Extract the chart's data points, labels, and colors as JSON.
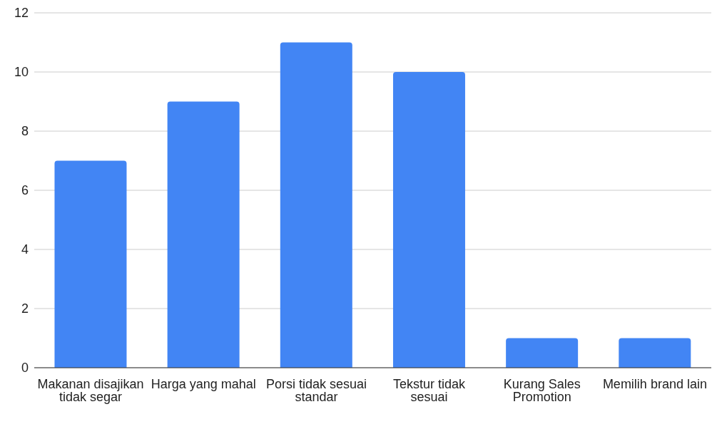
{
  "chart_data": {
    "type": "bar",
    "categories": [
      "Makanan disajikan tidak segar",
      "Harga yang mahal",
      "Porsi tidak sesuai standar",
      "Tekstur tidak sesuai",
      "Kurang Sales Promotion",
      "Memilih brand lain"
    ],
    "values": [
      7,
      9,
      11,
      10,
      1,
      1
    ],
    "color": "#4285f4",
    "ylim": [
      0,
      12
    ],
    "yticks": [
      0,
      2,
      4,
      6,
      8,
      10,
      12
    ],
    "grid": "y"
  }
}
